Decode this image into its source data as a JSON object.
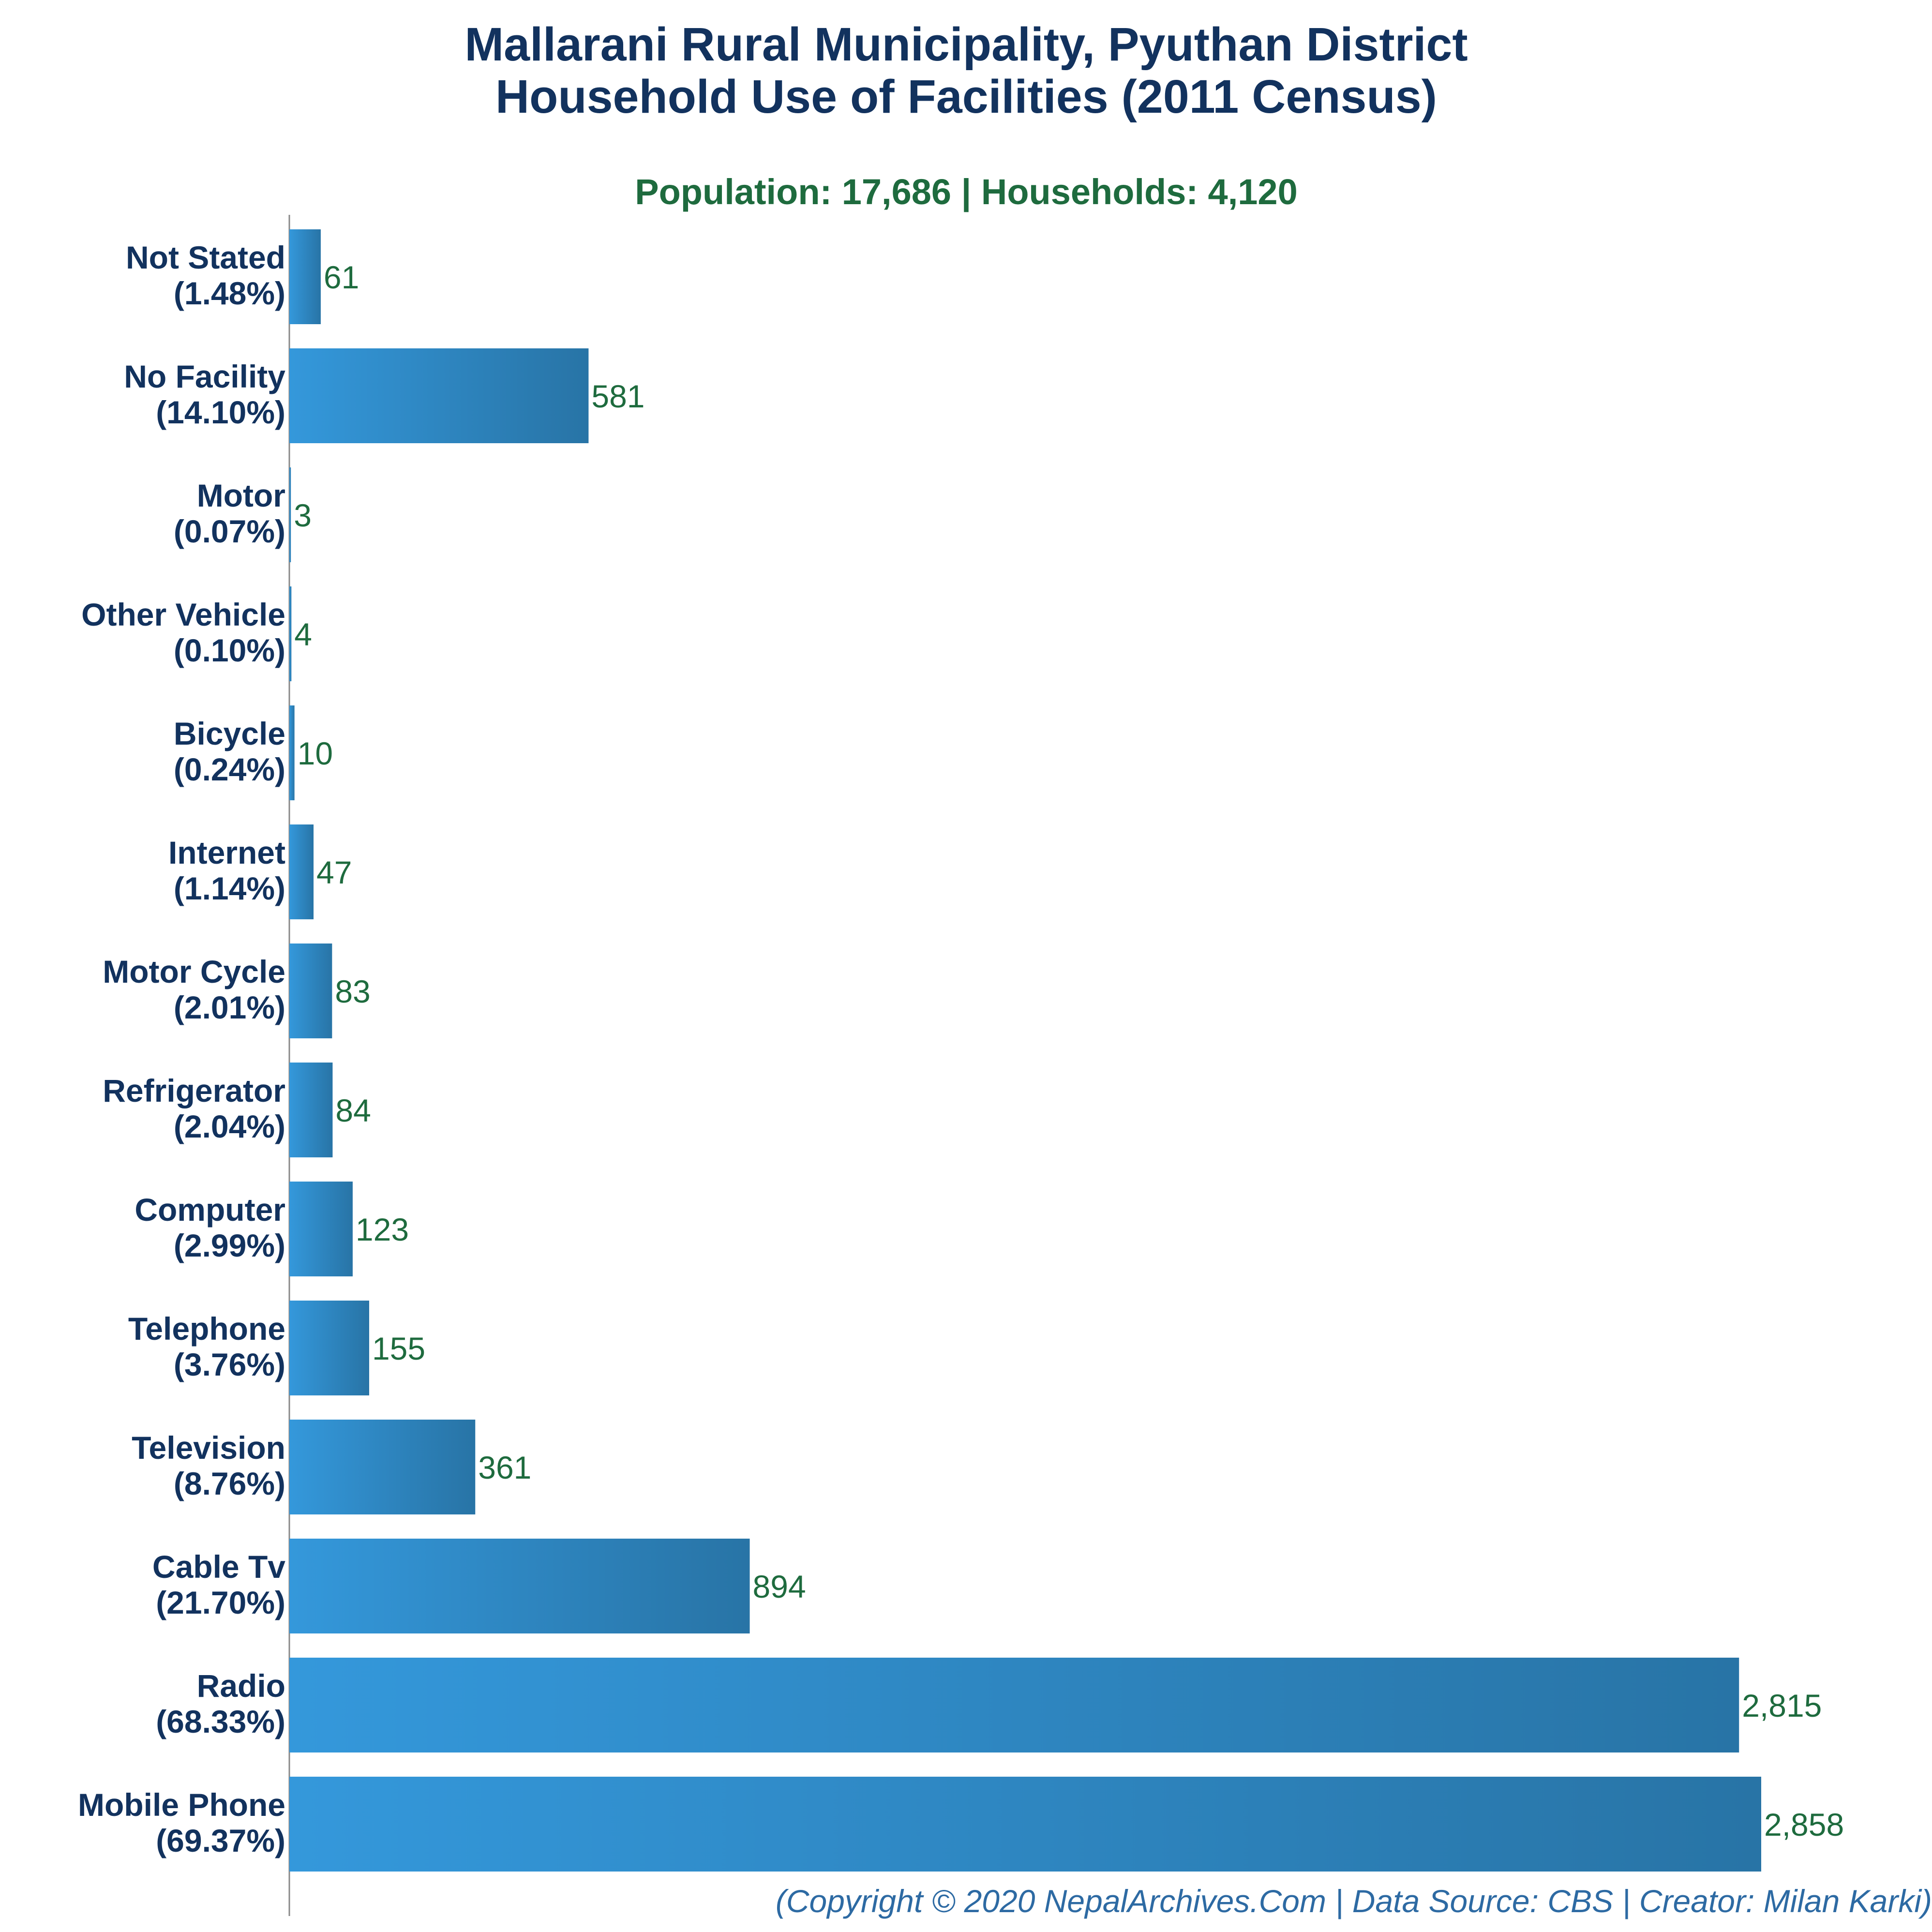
{
  "chart_data": {
    "type": "bar",
    "orientation": "horizontal",
    "title": [
      "Mallarani Rural Municipality, Pyuthan District",
      "Household Use of Facilities (2011 Census)"
    ],
    "subtitle": "Population: 17,686 | Households: 4,120",
    "categories": [
      {
        "name": "Not Stated",
        "percent": "(1.48%)"
      },
      {
        "name": "No Facility",
        "percent": "(14.10%)"
      },
      {
        "name": "Motor",
        "percent": "(0.07%)"
      },
      {
        "name": "Other Vehicle",
        "percent": "(0.10%)"
      },
      {
        "name": "Bicycle",
        "percent": "(0.24%)"
      },
      {
        "name": "Internet",
        "percent": "(1.14%)"
      },
      {
        "name": "Motor Cycle",
        "percent": "(2.01%)"
      },
      {
        "name": "Refrigerator",
        "percent": "(2.04%)"
      },
      {
        "name": "Computer",
        "percent": "(2.99%)"
      },
      {
        "name": "Telephone",
        "percent": "(3.76%)"
      },
      {
        "name": "Television",
        "percent": "(8.76%)"
      },
      {
        "name": "Cable Tv",
        "percent": "(21.70%)"
      },
      {
        "name": "Radio",
        "percent": "(68.33%)"
      },
      {
        "name": "Mobile Phone",
        "percent": "(69.37%)"
      }
    ],
    "values": [
      61,
      581,
      3,
      4,
      10,
      47,
      83,
      84,
      123,
      155,
      361,
      894,
      2815,
      2858
    ],
    "value_labels": [
      "61",
      "581",
      "3",
      "4",
      "10",
      "47",
      "83",
      "84",
      "123",
      "155",
      "361",
      "894",
      "2,815",
      "2,858"
    ],
    "xlim": [
      0,
      2858
    ],
    "grid": false,
    "colors": {
      "bar_light": "#3498db",
      "bar_dark": "#2874a6",
      "title": "#12325e",
      "subtitle": "#1e6b3e",
      "value": "#1e6b3e",
      "footer": "#2d6aa3",
      "axis": "#888888"
    }
  },
  "footer": "(Copyright © 2020 NepalArchives.Com | Data Source: CBS | Creator: Milan Karki)"
}
